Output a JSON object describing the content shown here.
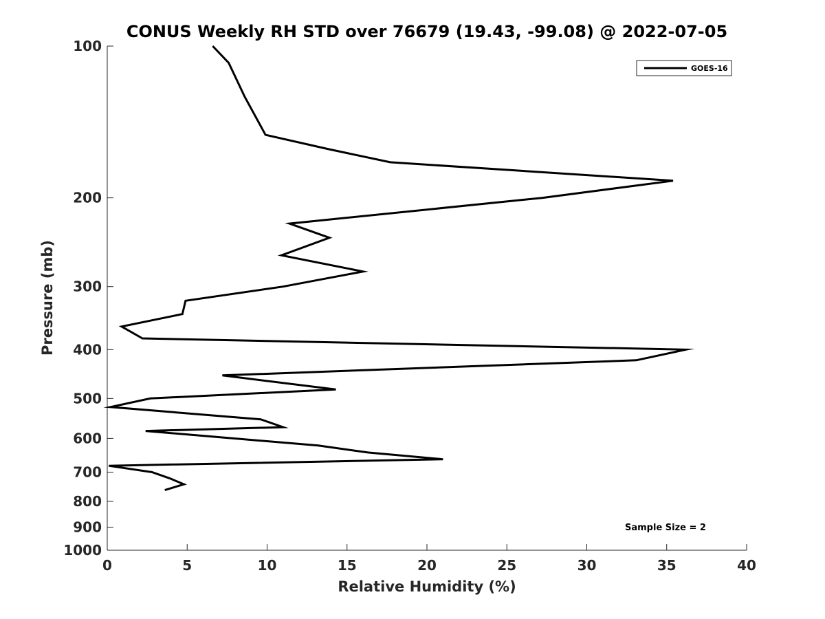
{
  "chart_data": {
    "type": "line",
    "title": "CONUS Weekly RH STD over 76679 (19.43, -99.08) @ 2022-07-05",
    "xlabel": "Relative Humidity (%)",
    "ylabel": "Pressure (mb)",
    "xlim": [
      0,
      40
    ],
    "ylim": [
      100,
      1000
    ],
    "yscale": "log",
    "y_reversed": true,
    "xticks": [
      0,
      5,
      10,
      15,
      20,
      25,
      30,
      35,
      40
    ],
    "yticks": [
      100,
      200,
      300,
      400,
      500,
      600,
      700,
      800,
      900,
      1000
    ],
    "legend": {
      "location": "top-right",
      "entries": [
        "GOES-16"
      ]
    },
    "annotation": "Sample Size = 2",
    "series": [
      {
        "name": "GOES-16",
        "color": "#000000",
        "x": [
          6.6,
          7.6,
          8.6,
          9.9,
          13.8,
          17.7,
          35.4,
          27.2,
          11.4,
          13.9,
          10.9,
          16.0,
          11.0,
          4.9,
          4.7,
          0.9,
          2.2,
          36.2,
          33.1,
          7.2,
          14.3,
          2.7,
          0.2,
          9.6,
          11.0,
          2.4,
          13.2,
          16.3,
          21.0,
          0.1,
          2.8,
          3.9,
          4.8,
          3.6
        ],
        "y": [
          100,
          108,
          126,
          150,
          160,
          170,
          185,
          200,
          225,
          240,
          260,
          280,
          300,
          320,
          340,
          360,
          380,
          400,
          420,
          450,
          480,
          500,
          520,
          550,
          570,
          580,
          620,
          640,
          660,
          680,
          700,
          720,
          740,
          760
        ]
      }
    ]
  }
}
